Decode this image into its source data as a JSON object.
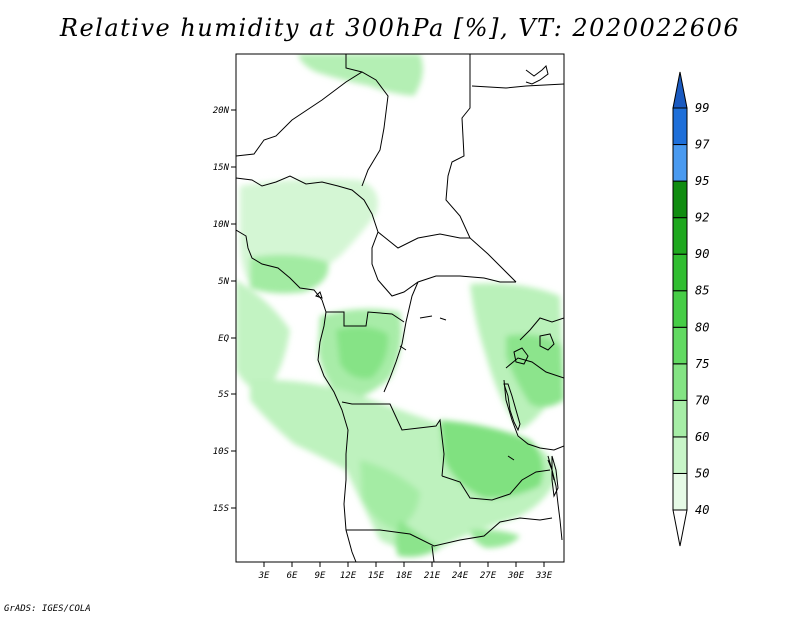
{
  "title": "Relative humidity at 300hPa [%], VT: 2020022606",
  "credit": "GrADS: IGES/COLA",
  "map": {
    "x_ticks": [
      "3E",
      "6E",
      "9E",
      "12E",
      "15E",
      "18E",
      "21E",
      "24E",
      "27E",
      "30E",
      "33E"
    ],
    "y_ticks": [
      "20N",
      "15N",
      "10N",
      "5N",
      "EQ",
      "5S",
      "10S",
      "15S"
    ]
  },
  "colorbar": {
    "levels": [
      "40",
      "50",
      "60",
      "70",
      "75",
      "80",
      "85",
      "90",
      "92",
      "95",
      "97",
      "99"
    ],
    "colors": [
      "#ffffff",
      "#e6fae6",
      "#c8f5c8",
      "#a6eda6",
      "#84e484",
      "#62da62",
      "#46cd46",
      "#30bd30",
      "#1ea81e",
      "#108c10",
      "#4a9af0",
      "#1e6fd9",
      "#1a5ac0"
    ]
  },
  "chart_data": {
    "type": "heatmap",
    "title": "Relative humidity at 300hPa [%], VT: 2020022606",
    "x_tick_labels": [
      "3E",
      "6E",
      "9E",
      "12E",
      "15E",
      "18E",
      "21E",
      "24E",
      "27E",
      "30E",
      "33E"
    ],
    "y_tick_labels": [
      "20N",
      "15N",
      "10N",
      "5N",
      "EQ",
      "5S",
      "10S",
      "15S"
    ],
    "contour_levels": [
      40,
      50,
      60,
      70,
      75,
      80,
      85,
      90,
      92,
      95,
      97,
      99
    ],
    "colors": [
      "#ffffff",
      "#e6fae6",
      "#c8f5c8",
      "#a6eda6",
      "#84e484",
      "#62da62",
      "#46cd46",
      "#30bd30",
      "#1ea81e",
      "#108c10",
      "#4a9af0",
      "#1e6fd9",
      "#1a5ac0"
    ]
  }
}
